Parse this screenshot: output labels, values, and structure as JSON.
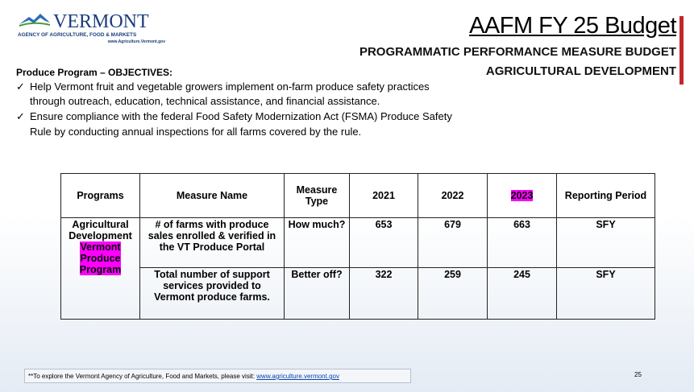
{
  "logo": {
    "name": "VERMONT",
    "agency": "AGENCY OF AGRICULTURE, FOOD & MARKETS",
    "url": "www.Agriculture.Vermont.gov"
  },
  "header": {
    "title": "AAFM FY 25 Budget",
    "subtitle": "PROGRAMMATIC PERFORMANCE MEASURE BUDGET",
    "section": "AGRICULTURAL DEVELOPMENT"
  },
  "objectives": {
    "heading": "Produce Program – OBJECTIVES:",
    "items": [
      "Help Vermont fruit and vegetable growers implement on-farm produce safety practices through outreach, education, technical assistance, and financial assistance.",
      "Ensure compliance with the federal Food Safety Modernization Act (FSMA) Produce Safety Rule by conducting annual inspections for all farms covered by the rule."
    ]
  },
  "table": {
    "headers": [
      "Programs",
      "Measure Name",
      "Measure Type",
      "2021",
      "2022",
      "2023",
      "Reporting Period"
    ],
    "program": [
      "Agricultural Development",
      "Vermont Produce Program"
    ],
    "rows": [
      [
        "# of farms with produce sales enrolled & verified in the VT Produce Portal",
        "How much?",
        653,
        679,
        663,
        "SFY"
      ],
      [
        "Total number of support services provided to Vermont produce farms.",
        "Better off?",
        322,
        259,
        245,
        "SFY"
      ]
    ]
  },
  "footer": {
    "text": "**To explore the Vermont Agency of Agriculture, Food and Markets, please visit: ",
    "link": "www.agriculture.vermont.gov",
    "page": "25"
  }
}
